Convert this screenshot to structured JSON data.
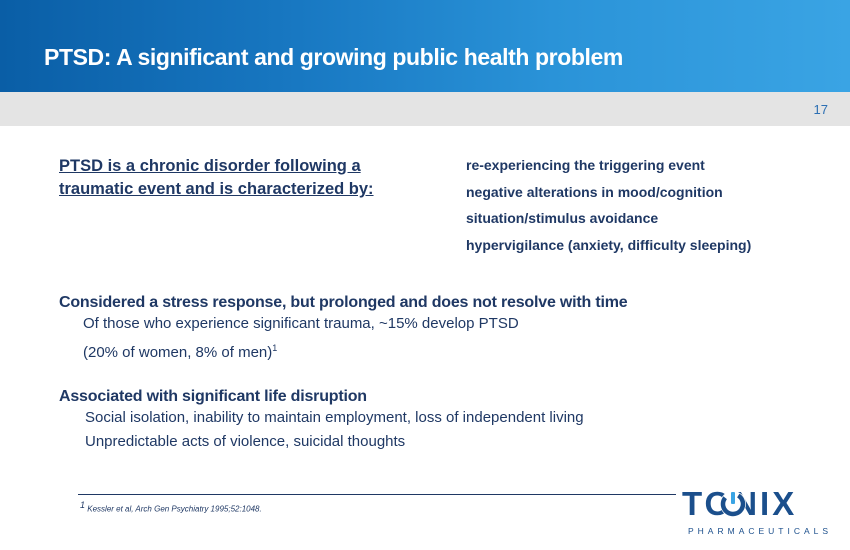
{
  "header": {
    "title": "PTSD: A significant and growing public health problem"
  },
  "page_number": "17",
  "intro": {
    "line1": "PTSD is a chronic disorder following a",
    "line2": "traumatic event and is characterized by:"
  },
  "traits": [
    "re-experiencing the triggering event",
    "negative alterations in mood/cognition",
    "situation/stimulus avoidance",
    "hypervigilance (anxiety, difficulty sleeping)"
  ],
  "stress_section": {
    "heading": "Considered a stress response, but prolonged and does not resolve with time",
    "line1": "Of those who experience significant trauma, ~15% develop PTSD",
    "line2": "(20% of women, 8% of men)",
    "footnote_mark": "1"
  },
  "disruption_section": {
    "heading": "Associated with significant life disruption",
    "line1": "Social isolation, inability to maintain employment, loss of independent living",
    "line2": "Unpredictable acts of violence, suicidal thoughts"
  },
  "footnote": {
    "mark": "1",
    "text": "Kessler et al, Arch Gen Psychiatry 1995;52:1048."
  },
  "logo": {
    "name": "TONIX",
    "subtitle": "PHARMACEUTICALS",
    "colors": {
      "primary": "#1b4f8c",
      "accent": "#3aa4e4"
    }
  }
}
